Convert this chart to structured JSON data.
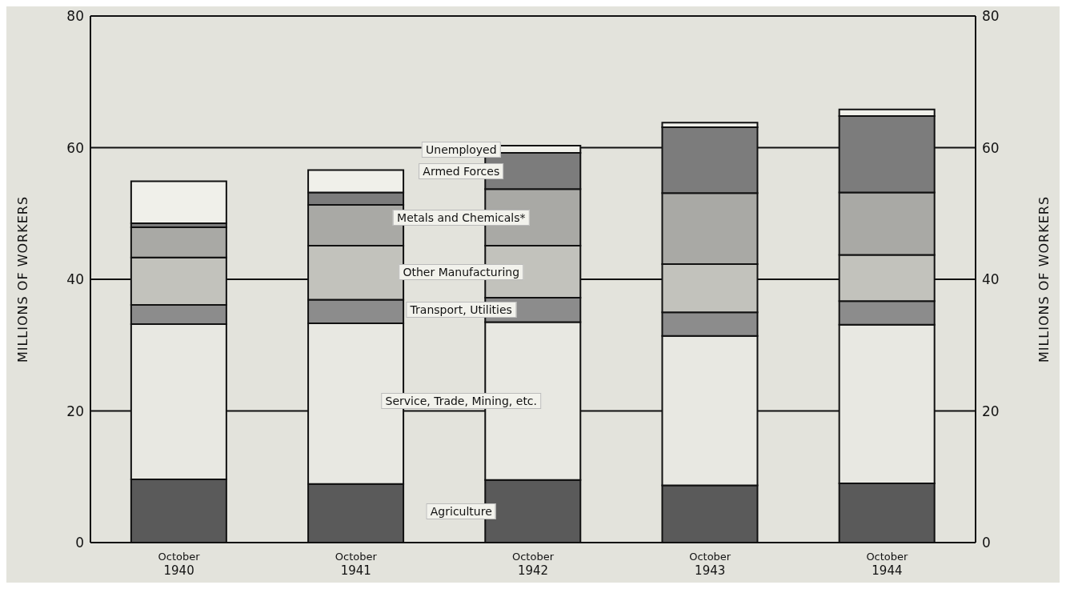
{
  "chart_data": {
    "type": "bar",
    "stacked": true,
    "ylabel": "MILLIONS OF WORKERS",
    "y2label": "MILLIONS OF WORKERS",
    "categories": [
      "October 1940",
      "October 1941",
      "October 1942",
      "October 1943",
      "October 1944"
    ],
    "series": [
      {
        "name": "Agriculture",
        "color": "#5a5a5a",
        "values": [
          9.6,
          8.9,
          9.5,
          8.7,
          9.0
        ]
      },
      {
        "name": "Service, Trade, Mining, etc.",
        "color": "#e8e8e2",
        "values": [
          23.6,
          24.4,
          24.0,
          22.7,
          24.1
        ]
      },
      {
        "name": "Transport, Utilities",
        "color": "#8c8c8c",
        "values": [
          2.9,
          3.6,
          3.7,
          3.6,
          3.6
        ]
      },
      {
        "name": "Other Manufacturing",
        "color": "#c2c2bc",
        "values": [
          7.2,
          8.2,
          7.9,
          7.3,
          7.0
        ]
      },
      {
        "name": "Metals and Chemicals*",
        "color": "#a9a9a5",
        "values": [
          4.6,
          6.2,
          8.6,
          10.8,
          9.5
        ]
      },
      {
        "name": "Armed Forces",
        "color": "#7c7c7c",
        "values": [
          0.6,
          1.9,
          5.5,
          10.0,
          11.6
        ]
      },
      {
        "name": "Unemployed",
        "color": "#f0f0ea",
        "values": [
          6.4,
          3.4,
          1.1,
          0.7,
          1.0
        ]
      }
    ],
    "ylim": [
      0,
      80
    ],
    "yticks": [
      0,
      20,
      40,
      60,
      80
    ],
    "y2lim": [
      0,
      80
    ],
    "y2ticks": [
      0,
      20,
      40,
      60,
      80
    ],
    "grid": "y",
    "legend": false
  }
}
